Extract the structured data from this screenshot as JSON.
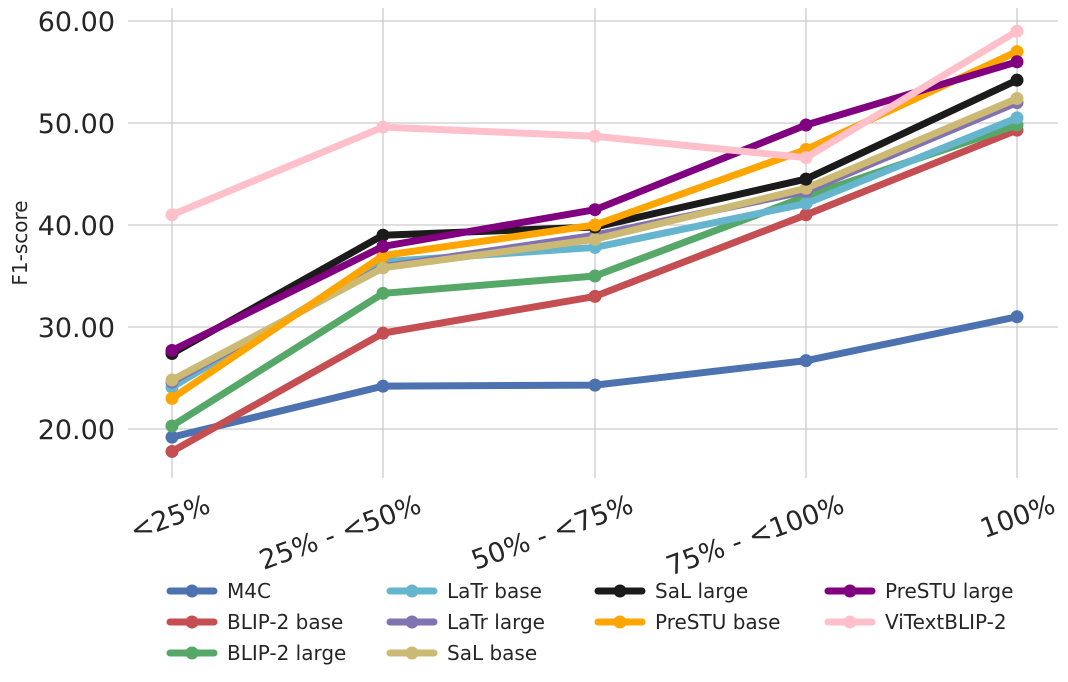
{
  "chart_data": {
    "type": "line",
    "title": "",
    "xlabel": "",
    "ylabel": "F1-score",
    "categories": [
      "<25%",
      "25% - <50%",
      "50% - <75%",
      "75% - <100%",
      "100%"
    ],
    "y_tick_labels": [
      "20.00",
      "30.00",
      "40.00",
      "50.00",
      "60.00"
    ],
    "y_ticks": [
      20,
      30,
      40,
      50,
      60
    ],
    "ylim": [
      15.3,
      62.0
    ],
    "grid": true,
    "legend_position": "bottom",
    "series": [
      {
        "name": "M4C",
        "color": "#4c72b0",
        "values": [
          19.2,
          24.2,
          24.3,
          26.7,
          31.0
        ]
      },
      {
        "name": "BLIP-2 base",
        "color": "#c44e52",
        "values": [
          17.8,
          29.4,
          33.0,
          41.0,
          49.3
        ]
      },
      {
        "name": "BLIP-2 large",
        "color": "#55a868",
        "values": [
          20.3,
          33.3,
          35.0,
          42.8,
          49.8
        ]
      },
      {
        "name": "LaTr base",
        "color": "#64b5cd",
        "values": [
          24.1,
          36.4,
          37.8,
          42.1,
          50.5
        ]
      },
      {
        "name": "LaTr large",
        "color": "#8172b2",
        "values": [
          24.6,
          35.9,
          39.0,
          43.3,
          52.0
        ]
      },
      {
        "name": "SaL base",
        "color": "#ccb974",
        "values": [
          24.8,
          35.8,
          38.6,
          43.6,
          52.4
        ]
      },
      {
        "name": "SaL large",
        "color": "#1b1b1b",
        "values": [
          27.4,
          39.0,
          39.8,
          44.5,
          54.2
        ]
      },
      {
        "name": "PreSTU base",
        "color": "#ffa500",
        "values": [
          23.0,
          37.0,
          40.0,
          47.4,
          57.0
        ]
      },
      {
        "name": "PreSTU large",
        "color": "#800080",
        "values": [
          27.7,
          37.9,
          41.5,
          49.8,
          56.0
        ]
      },
      {
        "name": "ViTextBLIP-2",
        "color": "#ffc0cb",
        "values": [
          41.0,
          49.6,
          48.7,
          46.6,
          59.0
        ]
      }
    ]
  }
}
